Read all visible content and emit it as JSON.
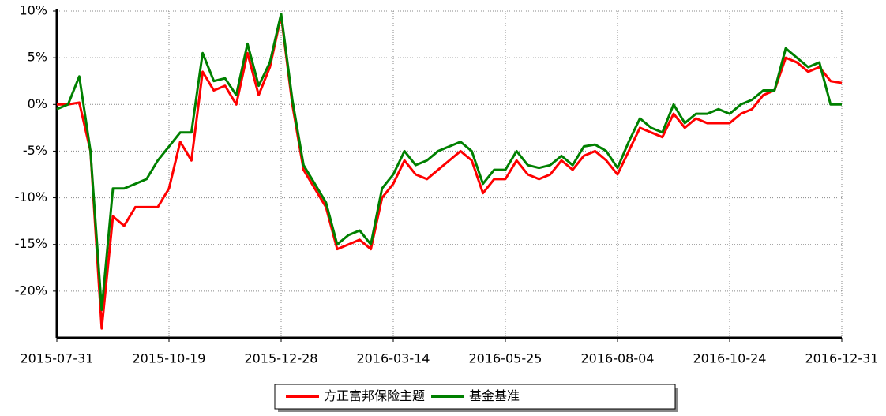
{
  "chart_data": {
    "type": "line",
    "categories": [
      "2015-07-31",
      null,
      null,
      null,
      null,
      null,
      null,
      null,
      null,
      null,
      "2015-10-19",
      null,
      null,
      null,
      null,
      null,
      null,
      null,
      null,
      null,
      "2015-12-28",
      null,
      null,
      null,
      null,
      null,
      null,
      null,
      null,
      null,
      "2016-03-14",
      null,
      null,
      null,
      null,
      null,
      null,
      null,
      null,
      null,
      "2016-05-25",
      null,
      null,
      null,
      null,
      null,
      null,
      null,
      null,
      null,
      "2016-08-04",
      null,
      null,
      null,
      null,
      null,
      null,
      null,
      null,
      null,
      "2016-10-24",
      null,
      null,
      null,
      null,
      null,
      null,
      null,
      null,
      null,
      "2016-12-31"
    ],
    "series": [
      {
        "name": "方正富邦保险主题",
        "color": "#ff0000",
        "values": [
          0,
          0,
          0.2,
          -5,
          -24,
          -12,
          -13,
          -11,
          -11,
          -11,
          -9,
          -4,
          -6,
          3.5,
          1.5,
          2,
          0,
          5.5,
          1,
          4,
          9.5,
          0,
          -7,
          -9,
          -11,
          -15.5,
          -15,
          -14.5,
          -15.5,
          -10,
          -8.5,
          -6,
          -7.5,
          -8,
          -7,
          -6,
          -5,
          -6,
          -9.5,
          -8,
          -8,
          -6,
          -7.5,
          -8,
          -7.5,
          -6,
          -7,
          -5.5,
          -5,
          -6,
          -7.5,
          -5,
          -2.5,
          -3,
          -3.5,
          -1,
          -2.5,
          -1.5,
          -2,
          -2,
          -2,
          -1,
          -0.5,
          1,
          1.5,
          5,
          4.5,
          3.5,
          4,
          2.5,
          2.3
        ]
      },
      {
        "name": "基金基准",
        "color": "#008000",
        "values": [
          -0.5,
          0,
          3,
          -5,
          -22,
          -9,
          -9,
          -8.5,
          -8,
          -6,
          -4.5,
          -3,
          -3,
          5.5,
          2.5,
          2.8,
          1,
          6.5,
          2,
          4.5,
          9.7,
          0.5,
          -6.5,
          -8.5,
          -10.5,
          -15,
          -14,
          -13.5,
          -15,
          -9,
          -7.5,
          -5,
          -6.5,
          -6,
          -5,
          -4.5,
          -4,
          -5,
          -8.5,
          -7,
          -7,
          -5,
          -6.5,
          -6.8,
          -6.5,
          -5.5,
          -6.5,
          -4.5,
          -4.3,
          -5,
          -6.8,
          -4,
          -1.5,
          -2.5,
          -3,
          0,
          -2,
          -1,
          -1,
          -0.5,
          -1,
          0,
          0.5,
          1.5,
          1.5,
          6,
          5,
          4,
          4.5,
          0,
          0
        ]
      }
    ],
    "ylim": [
      -25,
      10
    ],
    "yticks": [
      {
        "value": 10,
        "label": "10%"
      },
      {
        "value": 5,
        "label": "5%"
      },
      {
        "value": 0,
        "label": "0%"
      },
      {
        "value": -5,
        "label": "-5%"
      },
      {
        "value": -10,
        "label": "-10%"
      },
      {
        "value": -15,
        "label": "-15%"
      },
      {
        "value": -20,
        "label": "-20%"
      }
    ],
    "grid": true,
    "legend": "bottom"
  }
}
